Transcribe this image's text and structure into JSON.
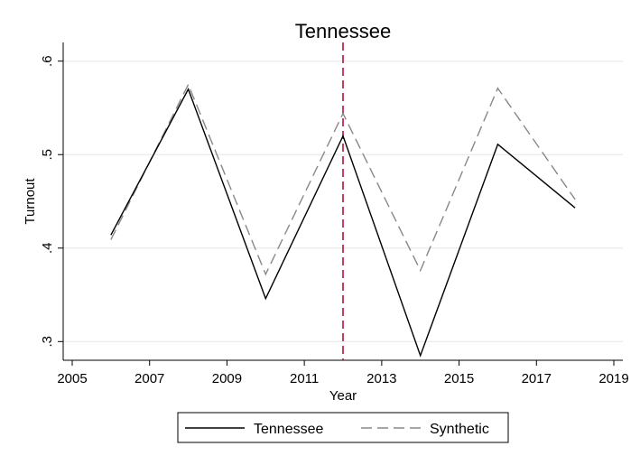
{
  "chart_data": {
    "type": "line",
    "title": "Tennessee",
    "xlabel": "Year",
    "ylabel": "Turnout",
    "xlim": [
      2005,
      2019
    ],
    "ylim": [
      0.28,
      0.62
    ],
    "x_ticks": [
      2005,
      2007,
      2009,
      2011,
      2013,
      2015,
      2017,
      2019
    ],
    "y_ticks": [
      {
        "value": 0.3,
        "label": ".3"
      },
      {
        "value": 0.4,
        "label": ".4"
      },
      {
        "value": 0.5,
        "label": ".5"
      },
      {
        "value": 0.6,
        "label": ".6"
      }
    ],
    "grid": "horizontal",
    "reference_line": {
      "x": 2012,
      "color": "#b3123c",
      "style": "dashed"
    },
    "legend_position": "bottom",
    "x": [
      2006,
      2008,
      2010,
      2012,
      2014,
      2016,
      2018
    ],
    "series": [
      {
        "name": "Tennessee",
        "color": "#000000",
        "style": "solid",
        "values": [
          0.414,
          0.57,
          0.346,
          0.52,
          0.285,
          0.511,
          0.443
        ]
      },
      {
        "name": "Synthetic",
        "color": "#888888",
        "style": "dashed",
        "values": [
          0.409,
          0.575,
          0.372,
          0.544,
          0.376,
          0.571,
          0.452
        ]
      }
    ]
  }
}
